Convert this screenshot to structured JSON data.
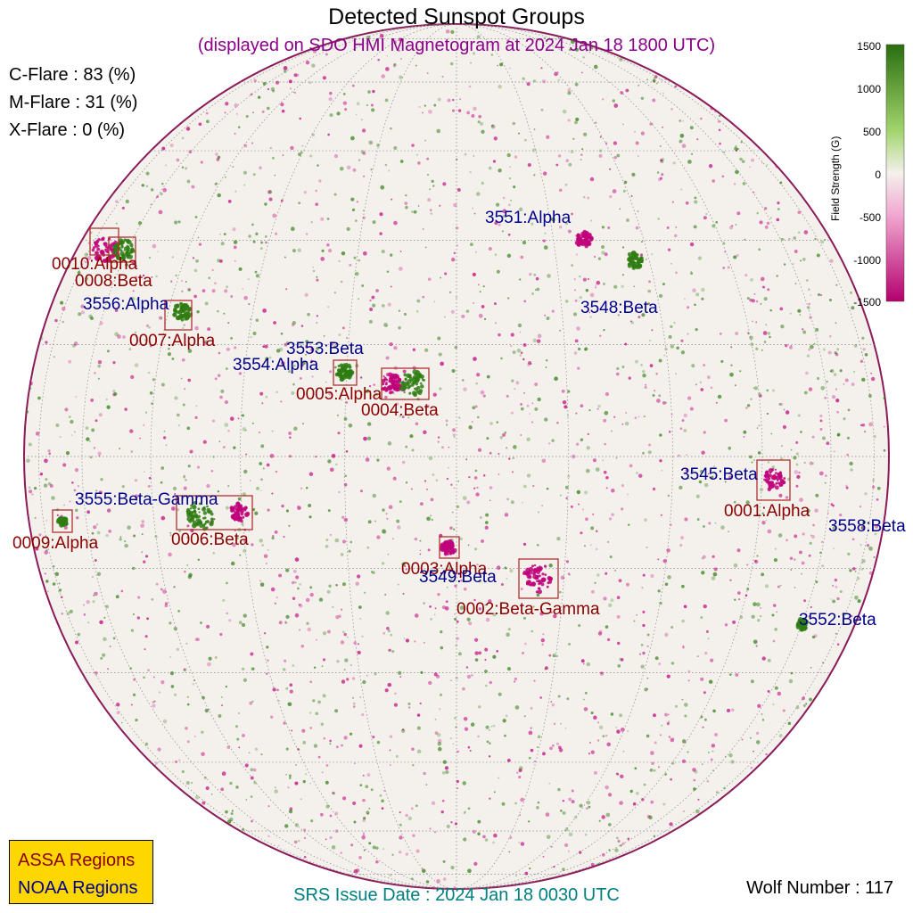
{
  "header": {
    "title": "Detected Sunspot Groups",
    "subtitle": "(displayed on SDO HMI Magnetogram at 2024 Jan 18 1800 UTC)"
  },
  "flare_probabilities": {
    "c_flare": "C-Flare : 83 (%)",
    "m_flare": "M-Flare : 31 (%)",
    "x_flare": "X-Flare :  0 (%)"
  },
  "colorbar": {
    "label": "Field Strength (G)",
    "ticks": [
      "1500",
      "1000",
      "500",
      "0",
      "-500",
      "-1000",
      "-1500"
    ],
    "positive_color": "#2f7d12",
    "negative_color": "#c0007a"
  },
  "regions": {
    "assa": [
      {
        "label": "0010:Alpha"
      },
      {
        "label": "0008:Beta"
      },
      {
        "label": "0007:Alpha"
      },
      {
        "label": "0005:Alpha"
      },
      {
        "label": "0004:Beta"
      },
      {
        "label": "0001:Alpha"
      },
      {
        "label": "0009:Alpha"
      },
      {
        "label": "0006:Beta"
      },
      {
        "label": "0003:Alpha"
      },
      {
        "label": "0002:Beta-Gamma"
      }
    ],
    "noaa": [
      {
        "label": "3551:Alpha"
      },
      {
        "label": "3556:Alpha"
      },
      {
        "label": "3548:Beta"
      },
      {
        "label": "3553:Beta"
      },
      {
        "label": "3554:Alpha"
      },
      {
        "label": "3545:Beta"
      },
      {
        "label": "3555:Beta-Gamma"
      },
      {
        "label": "3558:Beta"
      },
      {
        "label": "3549:Beta"
      },
      {
        "label": "3552:Beta"
      }
    ]
  },
  "legend": {
    "assa": "ASSA Regions",
    "noaa": "NOAA Regions",
    "assa_color": "#8b0000",
    "noaa_color": "#00008b"
  },
  "footer": {
    "srs_issue": "SRS Issue Date : 2024 Jan 18 0030 UTC",
    "wolf_number": "Wolf Number : 117"
  }
}
